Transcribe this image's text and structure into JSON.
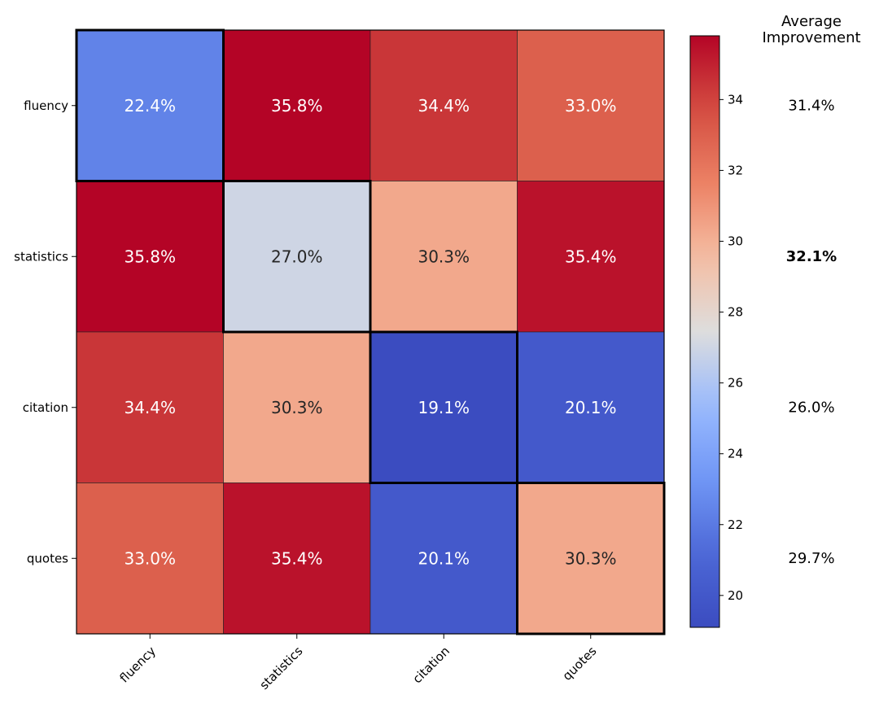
{
  "chart_data": {
    "type": "heatmap",
    "rows": [
      "fluency",
      "statistics",
      "citation",
      "quotes"
    ],
    "columns": [
      "fluency",
      "statistics",
      "citation",
      "quotes"
    ],
    "values": [
      [
        22.4,
        35.8,
        34.4,
        33.0
      ],
      [
        35.8,
        27.0,
        30.3,
        35.4
      ],
      [
        34.4,
        30.3,
        19.1,
        20.1
      ],
      [
        33.0,
        35.4,
        20.1,
        30.3
      ]
    ],
    "labels": [
      [
        "22.4%",
        "35.8%",
        "34.4%",
        "33.0%"
      ],
      [
        "35.8%",
        "27.0%",
        "30.3%",
        "35.4%"
      ],
      [
        "34.4%",
        "30.3%",
        "19.1%",
        "20.1%"
      ],
      [
        "33.0%",
        "35.4%",
        "20.1%",
        "30.3%"
      ]
    ],
    "colormap": "coolwarm",
    "colorbar": {
      "range": [
        19.1,
        35.8
      ],
      "ticks": [
        20,
        22,
        24,
        26,
        28,
        30,
        32,
        34
      ]
    },
    "highlighted_diagonal": true,
    "average_improvement": {
      "title_lines": [
        "Average",
        "Improvement"
      ],
      "values": [
        31.4,
        32.1,
        26.0,
        29.7
      ],
      "labels": [
        "31.4%",
        "32.1%",
        "26.0%",
        "29.7%"
      ],
      "bold_index": 1
    }
  }
}
